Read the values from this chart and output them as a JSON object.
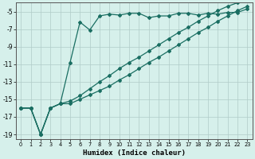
{
  "xlabel": "Humidex (Indice chaleur)",
  "bg_color": "#d6f0eb",
  "grid_color": "#b0ccc8",
  "line_color": "#1a6e62",
  "xlim": [
    -0.5,
    23.5
  ],
  "ylim": [
    -19.5,
    -4.0
  ],
  "xticks": [
    0,
    1,
    2,
    3,
    4,
    5,
    6,
    7,
    8,
    9,
    10,
    11,
    12,
    13,
    14,
    15,
    16,
    17,
    18,
    19,
    20,
    21,
    22,
    23
  ],
  "yticks": [
    -19,
    -17,
    -15,
    -13,
    -11,
    -9,
    -7,
    -5
  ],
  "line1_x": [
    0,
    1,
    2,
    3,
    4,
    5,
    6,
    7,
    8,
    9,
    10,
    11,
    12,
    13,
    14,
    15,
    16,
    17,
    18,
    19,
    20,
    21,
    22,
    23
  ],
  "line1_y": [
    -16.0,
    -16.0,
    -19.0,
    -16.0,
    -15.5,
    -10.8,
    -6.2,
    -7.1,
    -5.5,
    -5.3,
    -5.4,
    -5.2,
    -5.2,
    -5.7,
    -5.5,
    -5.5,
    -5.2,
    -5.2,
    -5.4,
    -5.2,
    -5.3,
    -5.1,
    -5.1,
    -4.7
  ],
  "line2_x": [
    0,
    1,
    2,
    3,
    4,
    5,
    6,
    7,
    8,
    9,
    10,
    11,
    12,
    13,
    14,
    15,
    16,
    17,
    18,
    19,
    20,
    21,
    22,
    23
  ],
  "line2_y": [
    -16.0,
    -16.0,
    -19.0,
    -16.0,
    -15.5,
    -15.2,
    -14.6,
    -13.8,
    -13.0,
    -12.3,
    -11.5,
    -10.8,
    -10.2,
    -9.5,
    -8.8,
    -8.1,
    -7.4,
    -6.8,
    -6.1,
    -5.5,
    -4.9,
    -4.4,
    -4.0,
    -3.7
  ],
  "line3_x": [
    0,
    1,
    2,
    3,
    4,
    5,
    6,
    7,
    8,
    9,
    10,
    11,
    12,
    13,
    14,
    15,
    16,
    17,
    18,
    19,
    20,
    21,
    22,
    23
  ],
  "line3_y": [
    -16.0,
    -16.0,
    -19.0,
    -16.0,
    -15.5,
    -15.5,
    -15.0,
    -14.5,
    -14.0,
    -13.5,
    -12.8,
    -12.2,
    -11.5,
    -10.8,
    -10.2,
    -9.5,
    -8.8,
    -8.1,
    -7.4,
    -6.8,
    -6.1,
    -5.5,
    -4.9,
    -4.4
  ]
}
